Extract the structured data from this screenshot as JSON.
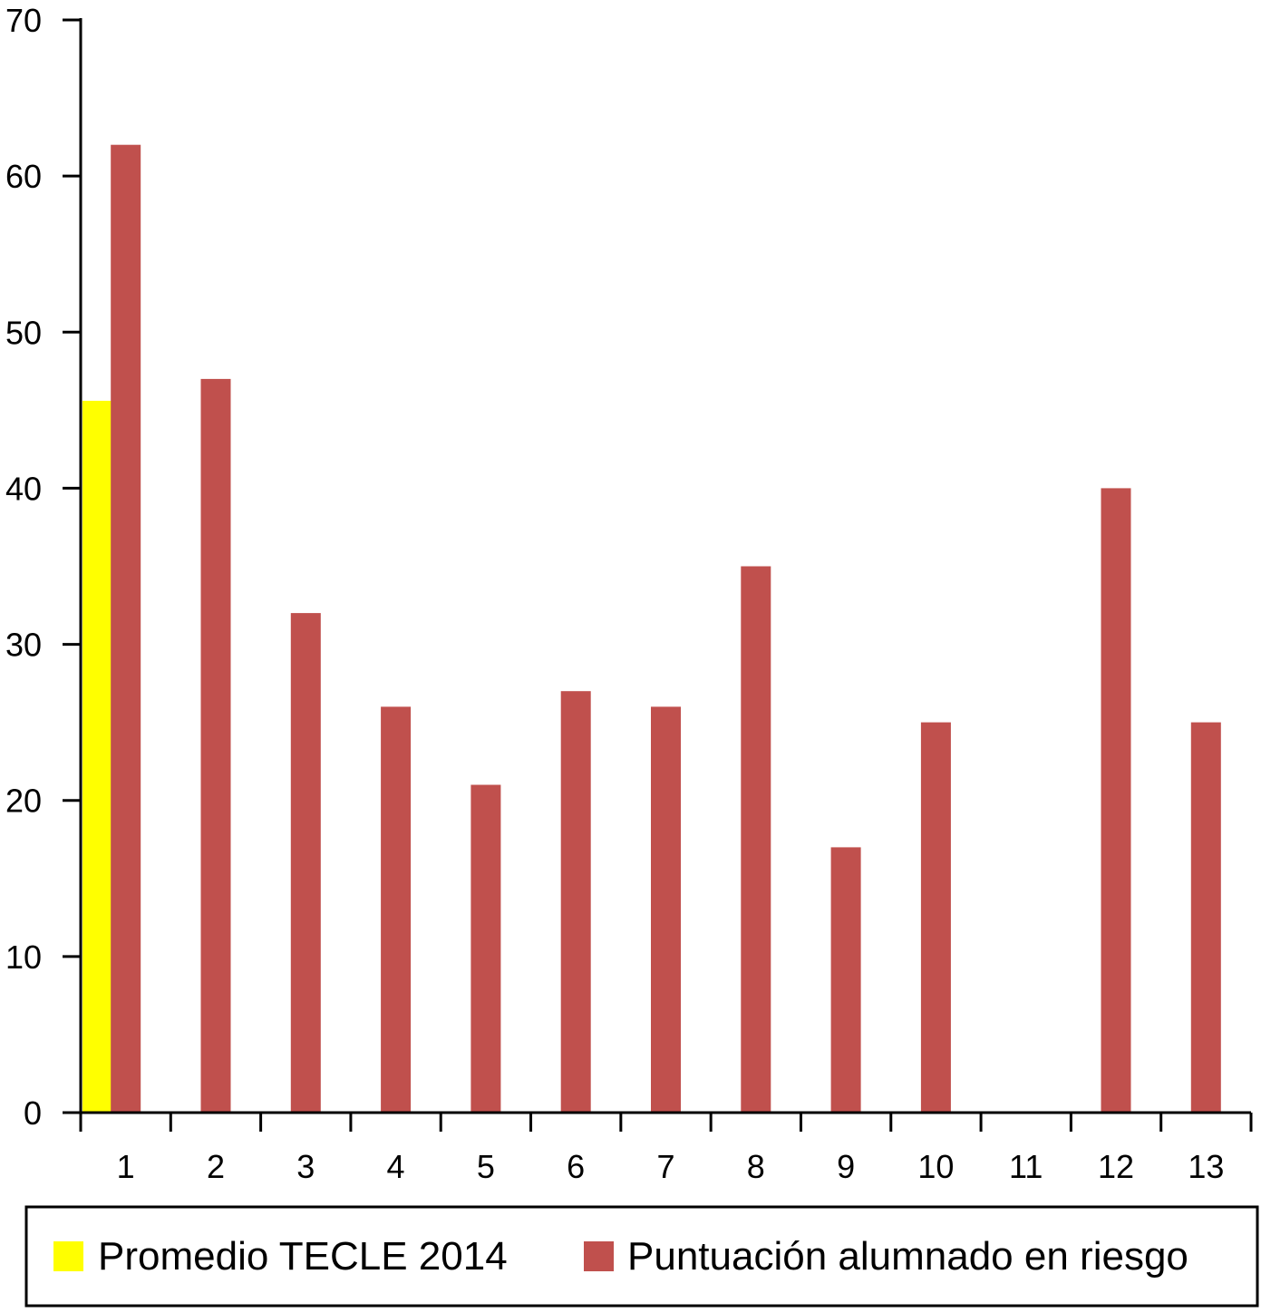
{
  "chart_data": {
    "type": "bar",
    "title": "",
    "xlabel": "",
    "ylabel": "",
    "ylim": [
      0,
      70
    ],
    "yticks": [
      0,
      10,
      20,
      30,
      40,
      50,
      60,
      70
    ],
    "categories": [
      "1",
      "2",
      "3",
      "4",
      "5",
      "6",
      "7",
      "8",
      "9",
      "10",
      "11",
      "12",
      "13"
    ],
    "grid": false,
    "legend_position": "bottom",
    "series": [
      {
        "name": "Promedio TECLE 2014",
        "color": "#ffff00",
        "values": [
          45.6,
          null,
          null,
          null,
          null,
          null,
          null,
          null,
          null,
          null,
          null,
          null,
          null
        ]
      },
      {
        "name": "Puntuación alumnado en riesgo",
        "color": "#c0504d",
        "values": [
          62,
          47,
          32,
          26,
          21,
          27,
          26,
          35,
          17,
          25,
          0,
          40,
          25
        ]
      }
    ]
  }
}
